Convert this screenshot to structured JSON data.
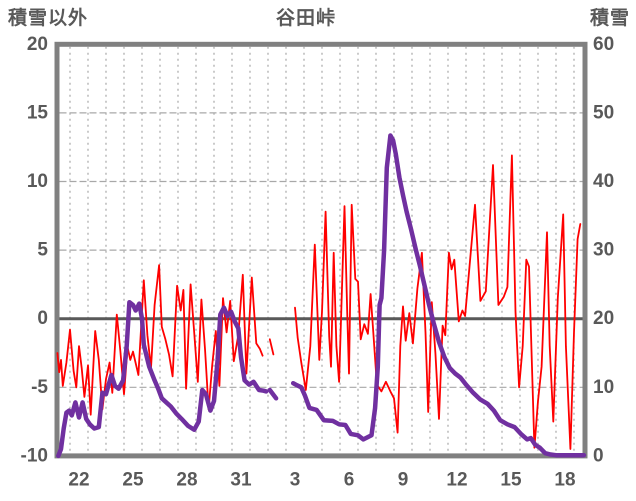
{
  "header": {
    "left_axis_title": "積雪以外",
    "chart_title": "谷田峠",
    "right_axis_title": "積雪"
  },
  "chart_data": {
    "type": "line",
    "title": "谷田峠",
    "grid": "on",
    "legend": "none",
    "style": {
      "frame_color": "#808080",
      "grid_color": "#A8A8A8",
      "zero_line_color": "#595959",
      "text_color": "#595959",
      "temperature_color": "#FF0000",
      "snow_color": "#7030A0"
    },
    "left_axis": {
      "label": "積雪以外",
      "min": -10,
      "max": 20,
      "ticks": [
        20,
        15,
        10,
        5,
        0,
        -5,
        -10
      ],
      "tick_labels": [
        "20",
        "15",
        "10",
        "5",
        "0",
        "-5",
        "-10"
      ]
    },
    "right_axis": {
      "label": "積雪",
      "min": 0,
      "max": 60,
      "ticks": [
        60,
        50,
        40,
        30,
        20,
        10,
        0
      ],
      "tick_labels": [
        "60",
        "50",
        "40",
        "30",
        "20",
        "10",
        "0"
      ]
    },
    "x_axis": {
      "domain_days": [
        21.28,
        50.6
      ],
      "gridline_day_start": 22,
      "gridline_day_end": 50,
      "ticks": [
        {
          "day": 22,
          "label": "22"
        },
        {
          "day": 25,
          "label": "25"
        },
        {
          "day": 28,
          "label": "28"
        },
        {
          "day": 31,
          "label": "31"
        },
        {
          "day": 34,
          "label": "3"
        },
        {
          "day": 37,
          "label": "6"
        },
        {
          "day": 40,
          "label": "9"
        },
        {
          "day": 43,
          "label": "12"
        },
        {
          "day": 46,
          "label": "15"
        },
        {
          "day": 49,
          "label": "18"
        }
      ]
    },
    "series": [
      {
        "id": "other-than-snow",
        "name": "積雪以外",
        "axis": "left",
        "color": "#FF0000",
        "width": 1.8,
        "segments": [
          [
            [
              21.3,
              -2.5
            ],
            [
              21.4,
              -3.9
            ],
            [
              21.5,
              -3.0
            ],
            [
              21.6,
              -4.9
            ],
            [
              21.8,
              -3.2
            ],
            [
              22.0,
              -0.8
            ],
            [
              22.2,
              -3.8
            ],
            [
              22.35,
              -5.0
            ],
            [
              22.5,
              -2.0
            ],
            [
              22.65,
              -3.6
            ],
            [
              22.8,
              -5.7
            ],
            [
              23.0,
              -3.4
            ],
            [
              23.15,
              -7.0
            ],
            [
              23.4,
              -0.9
            ],
            [
              23.6,
              -3.0
            ],
            [
              23.8,
              -6.6
            ],
            [
              24.0,
              -4.4
            ],
            [
              24.2,
              -3.2
            ],
            [
              24.35,
              -5.4
            ],
            [
              24.6,
              0.3
            ],
            [
              24.8,
              -2.4
            ],
            [
              25.0,
              -5.5
            ],
            [
              25.2,
              -2.1
            ],
            [
              25.35,
              -3.0
            ],
            [
              25.5,
              -2.4
            ],
            [
              25.8,
              -4.1
            ],
            [
              26.1,
              2.8
            ],
            [
              26.3,
              -1.2
            ],
            [
              26.5,
              -3.6
            ],
            [
              26.7,
              1.0
            ],
            [
              26.95,
              3.9
            ],
            [
              27.1,
              -0.6
            ],
            [
              27.3,
              -1.5
            ],
            [
              27.5,
              -2.6
            ],
            [
              27.7,
              -4.2
            ],
            [
              27.95,
              2.4
            ],
            [
              28.15,
              0.6
            ],
            [
              28.3,
              2.1
            ],
            [
              28.45,
              -5.1
            ],
            [
              28.7,
              2.5
            ],
            [
              28.9,
              -1.0
            ],
            [
              29.1,
              -4.6
            ],
            [
              29.3,
              1.4
            ],
            [
              29.5,
              -2.2
            ],
            [
              29.7,
              -6.6
            ],
            [
              29.9,
              -3.4
            ],
            [
              30.1,
              -0.9
            ],
            [
              30.3,
              -4.9
            ],
            [
              30.5,
              1.5
            ],
            [
              30.7,
              -1.0
            ],
            [
              30.9,
              1.3
            ],
            [
              31.1,
              -3.1
            ],
            [
              31.35,
              -1.2
            ],
            [
              31.6,
              3.2
            ],
            [
              31.8,
              -4.0
            ],
            [
              32.1,
              3.0
            ],
            [
              32.35,
              -1.8
            ],
            [
              32.55,
              -2.2
            ],
            [
              32.7,
              -2.7
            ]
          ],
          [
            [
              33.1,
              -1.5
            ],
            [
              33.3,
              -2.6
            ]
          ],
          [
            [
              34.5,
              0.8
            ],
            [
              34.65,
              -1.4
            ],
            [
              34.85,
              -3.2
            ],
            [
              35.1,
              -5.2
            ],
            [
              35.35,
              -2.0
            ],
            [
              35.6,
              5.4
            ],
            [
              35.85,
              -3.0
            ],
            [
              36.0,
              0.5
            ],
            [
              36.2,
              7.8
            ],
            [
              36.4,
              -1.3
            ],
            [
              36.5,
              -3.5
            ],
            [
              36.65,
              4.8
            ],
            [
              36.8,
              -2.0
            ],
            [
              36.95,
              -4.6
            ],
            [
              37.25,
              8.2
            ],
            [
              37.4,
              0.5
            ],
            [
              37.5,
              -4.0
            ],
            [
              37.65,
              8.3
            ],
            [
              37.85,
              2.9
            ],
            [
              38.0,
              2.7
            ],
            [
              38.15,
              -1.5
            ],
            [
              38.35,
              -0.4
            ],
            [
              38.55,
              -1.1
            ],
            [
              38.7,
              1.8
            ],
            [
              38.85,
              -1.0
            ],
            [
              39.05,
              -4.8
            ],
            [
              39.3,
              -5.3
            ],
            [
              39.55,
              -4.6
            ],
            [
              39.8,
              -5.3
            ],
            [
              40.0,
              -5.8
            ],
            [
              40.2,
              -8.3
            ],
            [
              40.35,
              -2.0
            ],
            [
              40.5,
              0.9
            ],
            [
              40.65,
              -1.6
            ],
            [
              40.85,
              0.4
            ],
            [
              41.05,
              -1.8
            ],
            [
              41.3,
              2.2
            ],
            [
              41.55,
              4.8
            ],
            [
              41.75,
              -1.0
            ],
            [
              41.9,
              -6.8
            ],
            [
              42.1,
              1.2
            ],
            [
              42.3,
              -2.5
            ],
            [
              42.5,
              -7.3
            ],
            [
              42.7,
              -0.5
            ],
            [
              42.85,
              -1.2
            ],
            [
              43.05,
              4.8
            ],
            [
              43.2,
              3.6
            ],
            [
              43.35,
              4.3
            ],
            [
              43.6,
              -0.2
            ],
            [
              43.8,
              0.6
            ],
            [
              43.95,
              0.2
            ],
            [
              44.5,
              8.3
            ],
            [
              44.8,
              1.3
            ],
            [
              45.1,
              2.0
            ],
            [
              45.5,
              11.2
            ],
            [
              45.8,
              1.0
            ],
            [
              46.1,
              1.6
            ],
            [
              46.3,
              2.3
            ],
            [
              46.55,
              11.9
            ],
            [
              46.75,
              0.5
            ],
            [
              46.95,
              -5.0
            ],
            [
              47.15,
              -2.0
            ],
            [
              47.35,
              4.3
            ],
            [
              47.5,
              3.8
            ],
            [
              47.8,
              -9.4
            ],
            [
              48.0,
              -6.0
            ],
            [
              48.2,
              -3.5
            ],
            [
              48.5,
              6.3
            ],
            [
              48.65,
              -2.0
            ],
            [
              48.85,
              -7.5
            ],
            [
              49.1,
              1.5
            ],
            [
              49.4,
              7.6
            ],
            [
              49.55,
              -2.0
            ],
            [
              49.8,
              -9.5
            ],
            [
              50.0,
              -1.0
            ],
            [
              50.2,
              5.8
            ],
            [
              50.35,
              6.9
            ]
          ]
        ]
      },
      {
        "id": "snow-depth",
        "name": "積雪",
        "axis": "right",
        "color": "#7030A0",
        "width": 4.5,
        "segments": [
          [
            [
              21.35,
              0
            ],
            [
              21.5,
              1.0
            ],
            [
              21.65,
              4.0
            ],
            [
              21.8,
              6.3
            ],
            [
              21.95,
              6.6
            ],
            [
              22.1,
              5.9
            ],
            [
              22.3,
              7.8
            ],
            [
              22.5,
              5.6
            ],
            [
              22.7,
              7.8
            ],
            [
              22.9,
              5.4
            ],
            [
              23.1,
              4.6
            ],
            [
              23.35,
              4.0
            ],
            [
              23.6,
              4.2
            ],
            [
              23.8,
              9.2
            ],
            [
              24.0,
              9.0
            ],
            [
              24.3,
              11.8
            ],
            [
              24.5,
              10.2
            ],
            [
              24.7,
              9.8
            ],
            [
              24.95,
              11.0
            ],
            [
              25.15,
              16.0
            ],
            [
              25.3,
              22.4
            ],
            [
              25.5,
              22.0
            ],
            [
              25.65,
              21.2
            ],
            [
              25.85,
              22.2
            ],
            [
              26.0,
              20.0
            ],
            [
              26.1,
              16.2
            ],
            [
              26.4,
              13.0
            ],
            [
              26.7,
              11.0
            ],
            [
              26.9,
              9.8
            ],
            [
              27.1,
              8.4
            ],
            [
              27.35,
              7.8
            ],
            [
              27.6,
              7.2
            ],
            [
              27.9,
              6.2
            ],
            [
              28.2,
              5.4
            ],
            [
              28.55,
              4.4
            ],
            [
              28.9,
              3.8
            ],
            [
              29.15,
              5.0
            ],
            [
              29.35,
              9.6
            ],
            [
              29.55,
              9.0
            ],
            [
              29.8,
              6.6
            ],
            [
              30.0,
              8.0
            ],
            [
              30.2,
              14.0
            ],
            [
              30.35,
              20.6
            ],
            [
              30.55,
              21.6
            ],
            [
              30.75,
              20.4
            ],
            [
              30.95,
              21.0
            ],
            [
              31.15,
              19.6
            ],
            [
              31.35,
              18.6
            ],
            [
              31.5,
              14.4
            ],
            [
              31.7,
              11.0
            ],
            [
              31.95,
              10.4
            ],
            [
              32.2,
              10.8
            ],
            [
              32.5,
              9.6
            ],
            [
              32.75,
              9.5
            ],
            [
              32.9,
              9.4
            ]
          ],
          [
            [
              33.1,
              9.6
            ],
            [
              33.45,
              8.4
            ]
          ],
          [
            [
              34.4,
              10.6
            ],
            [
              34.6,
              10.3
            ],
            [
              34.85,
              10.0
            ],
            [
              35.05,
              8.8
            ],
            [
              35.3,
              7.0
            ],
            [
              35.7,
              6.7
            ],
            [
              36.1,
              5.2
            ],
            [
              36.6,
              5.1
            ],
            [
              36.95,
              4.6
            ],
            [
              37.3,
              4.5
            ],
            [
              37.6,
              3.2
            ],
            [
              38.0,
              3.0
            ],
            [
              38.3,
              2.4
            ],
            [
              38.75,
              3.0
            ],
            [
              38.95,
              7.0
            ],
            [
              39.1,
              13.0
            ],
            [
              39.2,
              22.0
            ],
            [
              39.3,
              23.0
            ],
            [
              39.45,
              30.0
            ],
            [
              39.6,
              42.0
            ],
            [
              39.8,
              46.7
            ],
            [
              39.95,
              46.0
            ],
            [
              40.1,
              44.0
            ],
            [
              40.3,
              40.6
            ],
            [
              40.5,
              38.0
            ],
            [
              40.7,
              35.6
            ],
            [
              40.95,
              33.0
            ],
            [
              41.2,
              30.2
            ],
            [
              41.45,
              27.6
            ],
            [
              41.7,
              24.8
            ],
            [
              41.95,
              22.0
            ],
            [
              42.2,
              19.4
            ],
            [
              42.5,
              16.6
            ],
            [
              42.8,
              14.4
            ],
            [
              43.1,
              12.8
            ],
            [
              43.4,
              12.0
            ],
            [
              43.7,
              11.4
            ],
            [
              44.0,
              10.4
            ],
            [
              44.4,
              9.2
            ],
            [
              44.8,
              8.2
            ],
            [
              45.2,
              7.6
            ],
            [
              45.55,
              6.6
            ],
            [
              45.9,
              5.2
            ],
            [
              46.3,
              4.6
            ],
            [
              46.7,
              4.2
            ],
            [
              47.05,
              3.2
            ],
            [
              47.4,
              2.4
            ],
            [
              47.6,
              2.6
            ],
            [
              47.85,
              1.6
            ],
            [
              48.1,
              1.2
            ],
            [
              48.4,
              0.4
            ],
            [
              48.7,
              0.2
            ],
            [
              49.0,
              0.1
            ],
            [
              50.55,
              0.1
            ]
          ]
        ]
      }
    ]
  }
}
